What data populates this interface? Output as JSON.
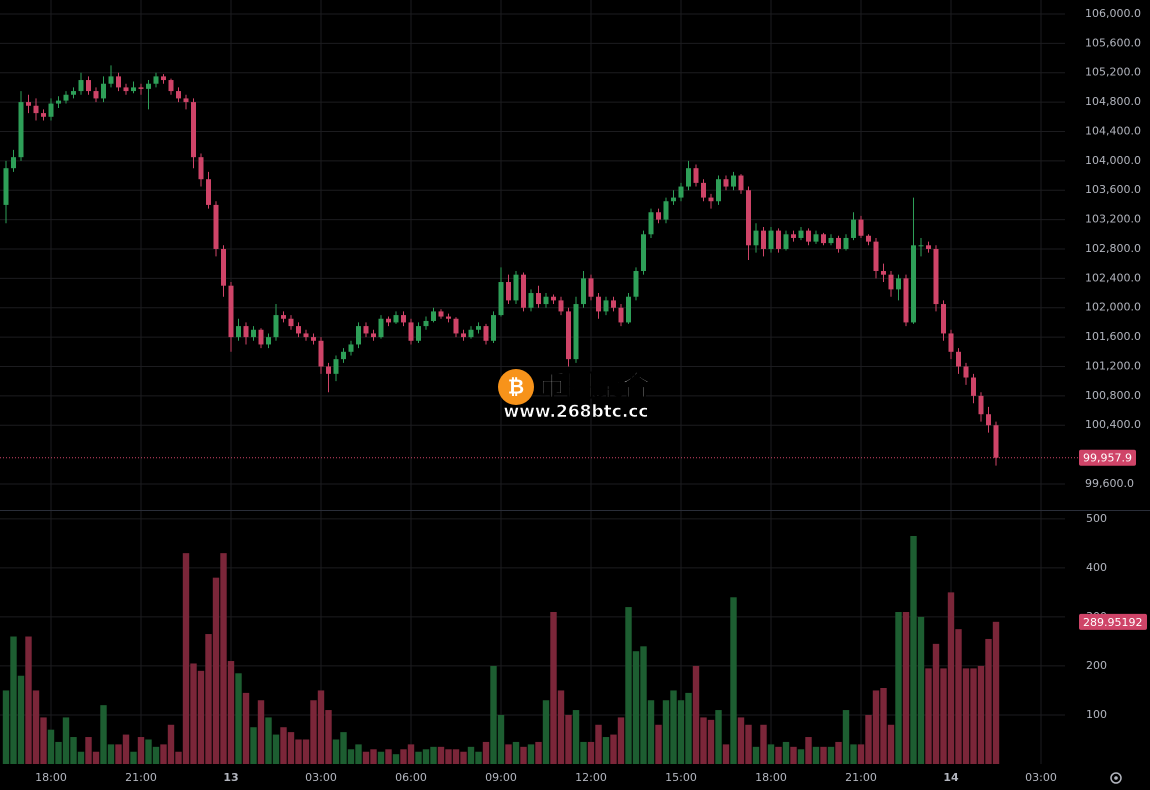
{
  "chart_data": {
    "type": "candlestick",
    "x": [
      16.5,
      16.75,
      17,
      17.25,
      17.5,
      17.75,
      18,
      18.25,
      18.5,
      18.75,
      19,
      19.25,
      19.5,
      19.75,
      20,
      20.25,
      20.5,
      20.75,
      21,
      21.25,
      21.5,
      21.75,
      22,
      22.25,
      22.5,
      22.75,
      23,
      23.25,
      23.5,
      23.75,
      24,
      24.25,
      24.5,
      24.75,
      25,
      25.25,
      25.5,
      25.75,
      26,
      26.25,
      26.5,
      26.75,
      27,
      27.25,
      27.5,
      27.75,
      28,
      28.25,
      28.5,
      28.75,
      29,
      29.25,
      29.5,
      29.75,
      30,
      30.25,
      30.5,
      30.75,
      31,
      31.25,
      31.5,
      31.75,
      32,
      32.25,
      32.5,
      32.75,
      33,
      33.25,
      33.5,
      33.75,
      34,
      34.25,
      34.5,
      34.75,
      35,
      35.25,
      35.5,
      35.75,
      36,
      36.25,
      36.5,
      36.75,
      37,
      37.25,
      37.5,
      37.75,
      38,
      38.25,
      38.5,
      38.75,
      39,
      39.25,
      39.5,
      39.75,
      40,
      40.25,
      40.5,
      40.75,
      41,
      41.25,
      41.5,
      41.75,
      42,
      42.25,
      42.5,
      42.75,
      43,
      43.25,
      43.5,
      43.75,
      44,
      44.25,
      44.5,
      44.75,
      45,
      45.25,
      45.5,
      45.75,
      46,
      46.25,
      46.5,
      46.75,
      47,
      47.25,
      47.5,
      47.75,
      48,
      48.25,
      48.5,
      48.75,
      49,
      49.25,
      49.5
    ],
    "candles": [
      [
        103400,
        104000,
        103150,
        103900
      ],
      [
        103900,
        104150,
        103850,
        104050
      ],
      [
        104050,
        104950,
        104000,
        104800
      ],
      [
        104800,
        104900,
        104650,
        104750
      ],
      [
        104750,
        104850,
        104550,
        104650
      ],
      [
        104650,
        104700,
        104550,
        104600
      ],
      [
        104600,
        104850,
        104550,
        104780
      ],
      [
        104780,
        104880,
        104720,
        104820
      ],
      [
        104820,
        104950,
        104780,
        104900
      ],
      [
        104900,
        105000,
        104850,
        104950
      ],
      [
        104950,
        105200,
        104900,
        105100
      ],
      [
        105100,
        105150,
        104900,
        104950
      ],
      [
        104950,
        105000,
        104800,
        104850
      ],
      [
        104850,
        105150,
        104800,
        105050
      ],
      [
        105050,
        105300,
        105000,
        105150
      ],
      [
        105150,
        105200,
        104950,
        105000
      ],
      [
        105000,
        105050,
        104900,
        104950
      ],
      [
        104950,
        105080,
        104920,
        105000
      ],
      [
        105000,
        105050,
        104900,
        104980
      ],
      [
        104980,
        105100,
        104700,
        105050
      ],
      [
        105050,
        105200,
        105000,
        105150
      ],
      [
        105150,
        105180,
        105050,
        105100
      ],
      [
        105100,
        105120,
        104900,
        104950
      ],
      [
        104950,
        105000,
        104800,
        104850
      ],
      [
        104850,
        104900,
        104700,
        104800
      ],
      [
        104800,
        104850,
        103900,
        104050
      ],
      [
        104050,
        104100,
        103650,
        103750
      ],
      [
        103750,
        103850,
        103350,
        103400
      ],
      [
        103400,
        103450,
        102700,
        102800
      ],
      [
        102800,
        102850,
        102150,
        102300
      ],
      [
        102300,
        102350,
        101400,
        101600
      ],
      [
        101600,
        101850,
        101550,
        101750
      ],
      [
        101750,
        101800,
        101500,
        101600
      ],
      [
        101600,
        101750,
        101550,
        101700
      ],
      [
        101700,
        101720,
        101450,
        101500
      ],
      [
        101500,
        101650,
        101450,
        101600
      ],
      [
        101600,
        102050,
        101550,
        101900
      ],
      [
        101900,
        101950,
        101800,
        101850
      ],
      [
        101850,
        101900,
        101700,
        101750
      ],
      [
        101750,
        101800,
        101600,
        101650
      ],
      [
        101650,
        101700,
        101550,
        101600
      ],
      [
        101600,
        101650,
        101500,
        101550
      ],
      [
        101550,
        101600,
        101100,
        101200
      ],
      [
        101200,
        101250,
        100850,
        101100
      ],
      [
        101100,
        101350,
        101000,
        101300
      ],
      [
        101300,
        101450,
        101250,
        101400
      ],
      [
        101400,
        101550,
        101350,
        101500
      ],
      [
        101500,
        101800,
        101450,
        101750
      ],
      [
        101750,
        101800,
        101600,
        101650
      ],
      [
        101650,
        101700,
        101550,
        101600
      ],
      [
        101600,
        101900,
        101580,
        101850
      ],
      [
        101850,
        101880,
        101750,
        101800
      ],
      [
        101800,
        101950,
        101780,
        101900
      ],
      [
        101900,
        101950,
        101750,
        101800
      ],
      [
        101800,
        101850,
        101500,
        101550
      ],
      [
        101550,
        101800,
        101520,
        101750
      ],
      [
        101750,
        101880,
        101700,
        101820
      ],
      [
        101820,
        102000,
        101800,
        101950
      ],
      [
        101950,
        101980,
        101850,
        101880
      ],
      [
        101880,
        101920,
        101800,
        101850
      ],
      [
        101850,
        101870,
        101600,
        101650
      ],
      [
        101650,
        101700,
        101550,
        101600
      ],
      [
        101600,
        101750,
        101580,
        101700
      ],
      [
        101700,
        101800,
        101650,
        101750
      ],
      [
        101750,
        101780,
        101500,
        101550
      ],
      [
        101550,
        101950,
        101520,
        101900
      ],
      [
        101900,
        102550,
        101880,
        102350
      ],
      [
        102350,
        102450,
        102050,
        102100
      ],
      [
        102100,
        102500,
        102050,
        102450
      ],
      [
        102450,
        102480,
        101950,
        102000
      ],
      [
        102000,
        102250,
        101950,
        102200
      ],
      [
        102200,
        102300,
        102000,
        102050
      ],
      [
        102050,
        102200,
        102000,
        102150
      ],
      [
        102150,
        102180,
        102050,
        102100
      ],
      [
        102100,
        102150,
        101900,
        101950
      ],
      [
        101950,
        102000,
        101200,
        101300
      ],
      [
        101300,
        102150,
        101250,
        102050
      ],
      [
        102050,
        102500,
        102000,
        102400
      ],
      [
        102400,
        102450,
        102100,
        102150
      ],
      [
        102150,
        102200,
        101850,
        101950
      ],
      [
        101950,
        102150,
        101900,
        102100
      ],
      [
        102100,
        102150,
        101950,
        102000
      ],
      [
        102000,
        102050,
        101750,
        101800
      ],
      [
        101800,
        102200,
        101780,
        102150
      ],
      [
        102150,
        102550,
        102100,
        102500
      ],
      [
        102500,
        103050,
        102450,
        103000
      ],
      [
        103000,
        103350,
        102950,
        103300
      ],
      [
        103300,
        103350,
        103150,
        103200
      ],
      [
        103200,
        103500,
        103150,
        103450
      ],
      [
        103450,
        103600,
        103400,
        103500
      ],
      [
        103500,
        103700,
        103450,
        103650
      ],
      [
        103650,
        104000,
        103600,
        103900
      ],
      [
        103900,
        103950,
        103650,
        103700
      ],
      [
        103700,
        103750,
        103450,
        103500
      ],
      [
        103500,
        103550,
        103350,
        103450
      ],
      [
        103450,
        103800,
        103400,
        103750
      ],
      [
        103750,
        103800,
        103600,
        103650
      ],
      [
        103650,
        103850,
        103600,
        103800
      ],
      [
        103800,
        103820,
        103550,
        103600
      ],
      [
        103600,
        103650,
        102650,
        102850
      ],
      [
        102850,
        103150,
        102750,
        103050
      ],
      [
        103050,
        103100,
        102700,
        102800
      ],
      [
        102800,
        103100,
        102750,
        103050
      ],
      [
        103050,
        103080,
        102750,
        102800
      ],
      [
        102800,
        103050,
        102780,
        103000
      ],
      [
        103000,
        103050,
        102900,
        102950
      ],
      [
        102950,
        103100,
        102920,
        103050
      ],
      [
        103050,
        103080,
        102850,
        102900
      ],
      [
        102900,
        103050,
        102870,
        103000
      ],
      [
        103000,
        103020,
        102850,
        102880
      ],
      [
        102880,
        103000,
        102850,
        102950
      ],
      [
        102950,
        102980,
        102750,
        102800
      ],
      [
        102800,
        103000,
        102780,
        102950
      ],
      [
        102950,
        103300,
        102920,
        103200
      ],
      [
        103200,
        103250,
        102950,
        102980
      ],
      [
        102980,
        103000,
        102850,
        102900
      ],
      [
        102900,
        102950,
        102400,
        102500
      ],
      [
        102500,
        102600,
        102350,
        102450
      ],
      [
        102450,
        102500,
        102150,
        102250
      ],
      [
        102250,
        102450,
        102100,
        102400
      ],
      [
        102400,
        102450,
        101750,
        101800
      ],
      [
        101800,
        103500,
        101780,
        102850
      ],
      [
        102850,
        102950,
        102700,
        102850
      ],
      [
        102850,
        102900,
        102750,
        102800
      ],
      [
        102800,
        102850,
        101950,
        102050
      ],
      [
        102050,
        102100,
        101550,
        101650
      ],
      [
        101650,
        101700,
        101300,
        101400
      ],
      [
        101400,
        101450,
        101100,
        101200
      ],
      [
        101200,
        101250,
        100950,
        101050
      ],
      [
        101050,
        101100,
        100700,
        100800
      ],
      [
        100800,
        100850,
        100450,
        100550
      ],
      [
        100550,
        100650,
        100300,
        100400
      ],
      [
        100400,
        100450,
        99850,
        99957.9
      ]
    ],
    "volume": [
      150,
      260,
      180,
      260,
      150,
      95,
      70,
      45,
      95,
      55,
      25,
      55,
      25,
      120,
      40,
      40,
      60,
      25,
      55,
      50,
      35,
      40,
      80,
      25,
      430,
      205,
      190,
      265,
      380,
      430,
      210,
      185,
      145,
      75,
      130,
      95,
      60,
      75,
      65,
      50,
      50,
      130,
      150,
      110,
      50,
      65,
      30,
      40,
      25,
      30,
      25,
      30,
      20,
      30,
      40,
      25,
      30,
      35,
      35,
      30,
      30,
      25,
      35,
      25,
      45,
      200,
      100,
      40,
      45,
      35,
      40,
      45,
      130,
      310,
      150,
      100,
      110,
      45,
      45,
      80,
      55,
      60,
      95,
      320,
      230,
      240,
      130,
      80,
      130,
      150,
      130,
      145,
      200,
      95,
      90,
      110,
      40,
      340,
      95,
      80,
      35,
      80,
      40,
      35,
      45,
      35,
      30,
      55,
      35,
      35,
      35,
      45,
      110,
      40,
      40,
      100,
      150,
      155,
      80,
      310,
      310,
      465,
      300,
      195,
      245,
      195,
      350,
      275,
      195,
      195,
      200,
      255,
      289.95192
    ],
    "xlim": [
      16.3,
      51.8
    ],
    "xticks": [
      {
        "value": 18,
        "label": "18:00"
      },
      {
        "value": 21,
        "label": "21:00"
      },
      {
        "value": 24,
        "label": "13"
      },
      {
        "value": 27,
        "label": "03:00"
      },
      {
        "value": 30,
        "label": "06:00"
      },
      {
        "value": 33,
        "label": "09:00"
      },
      {
        "value": 36,
        "label": "12:00"
      },
      {
        "value": 39,
        "label": "15:00"
      },
      {
        "value": 42,
        "label": "18:00"
      },
      {
        "value": 45,
        "label": "21:00"
      },
      {
        "value": 48,
        "label": "14"
      },
      {
        "value": 51,
        "label": "03:00"
      }
    ],
    "ylim": [
      99246,
      106190
    ],
    "yticks": [
      {
        "value": 99600,
        "label": "99,600.0"
      },
      {
        "value": 100400,
        "label": "100,400.0"
      },
      {
        "value": 100800,
        "label": "100,800.0"
      },
      {
        "value": 101200,
        "label": "101,200.0"
      },
      {
        "value": 101600,
        "label": "101,600.0"
      },
      {
        "value": 102000,
        "label": "102,000.0"
      },
      {
        "value": 102400,
        "label": "102,400.0"
      },
      {
        "value": 102800,
        "label": "102,800.0"
      },
      {
        "value": 103200,
        "label": "103,200.0"
      },
      {
        "value": 103600,
        "label": "103,600.0"
      },
      {
        "value": 104000,
        "label": "104,000.0"
      },
      {
        "value": 104400,
        "label": "104,400.0"
      },
      {
        "value": 104800,
        "label": "104,800.0"
      },
      {
        "value": 105200,
        "label": "105,200.0"
      },
      {
        "value": 105600,
        "label": "105,600.0"
      },
      {
        "value": 106000,
        "label": "106,000.0"
      }
    ],
    "volume_ylim": [
      0,
      518
    ],
    "volume_yticks": [
      100,
      200,
      300,
      400,
      500
    ],
    "last_price": {
      "value": 99957.9,
      "label": "99,957.9"
    },
    "last_volume": 289.95192,
    "up_color": "#2e9f58",
    "down_color": "#cf4468",
    "volume_up_color": "#1d5e31",
    "volume_down_color": "#7b2639",
    "grid": true
  },
  "watermark": {
    "title": "币圈聚合",
    "url": "www.268btc.cc"
  }
}
